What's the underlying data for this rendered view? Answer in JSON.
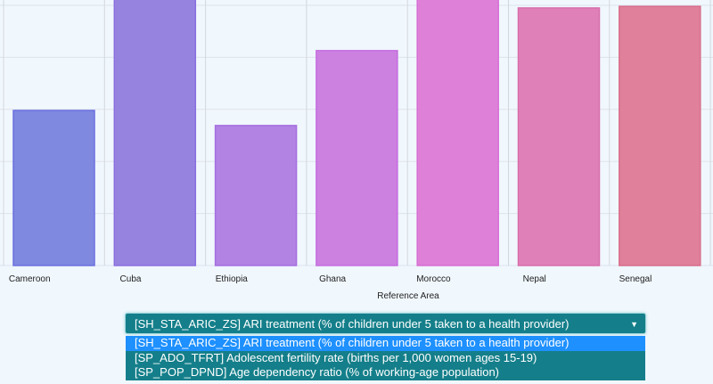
{
  "chart_data": {
    "type": "bar",
    "categories": [
      "Cameroon",
      "Cuba",
      "Ethiopia",
      "Ghana",
      "Morocco",
      "Nepal",
      "Senegal"
    ],
    "values": [
      2.98,
      5.3,
      2.69,
      4.13,
      5.3,
      4.95,
      4.98
    ],
    "xlabel": "Reference Area",
    "ylabel": "",
    "ylim": [
      0,
      5.1
    ],
    "grid": true,
    "colors": [
      "#8089e0",
      "#9683e0",
      "#b283e3",
      "#cc80e0",
      "#de80d8",
      "#e080b8",
      "#e0809a"
    ],
    "border_colors": [
      "#6a70e0",
      "#8a6ee0",
      "#a46ee0",
      "#c66ee0",
      "#d86ed4",
      "#d86eac",
      "#d86e8c"
    ]
  },
  "dropdown": {
    "selected": "[SH_STA_ARIC_ZS] ARI treatment (% of children under 5 taken to a health provider)",
    "arrow_icon": "triangle-down",
    "options": [
      "[SH_STA_ARIC_ZS] ARI treatment (% of children under 5 taken to a health provider)",
      "[SP_ADO_TFRT] Adolescent fertility rate (births per 1,000 women ages 15-19)",
      "[SP_POP_DPND] Age dependency ratio (% of working-age population)"
    ]
  }
}
